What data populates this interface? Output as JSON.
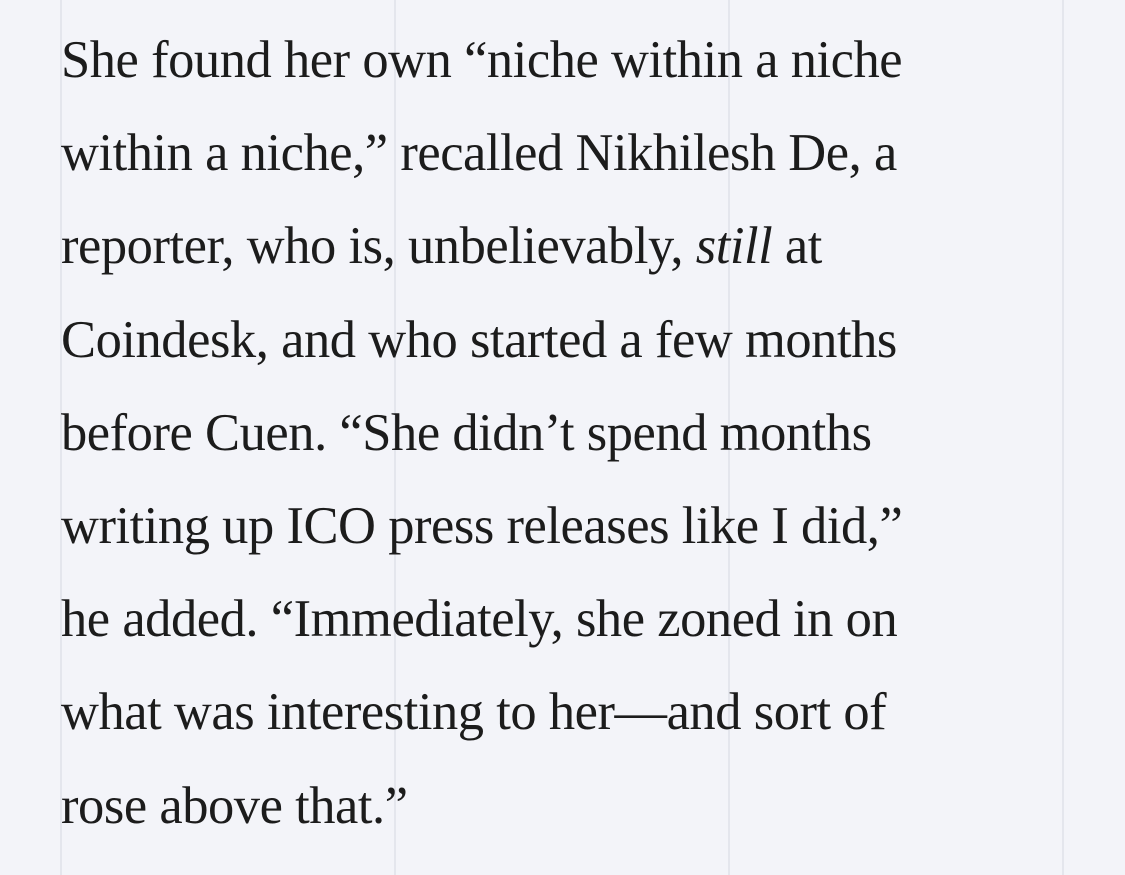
{
  "article": {
    "lines": [
      "She found her own “niche within a niche",
      "within a niche,” recalled Nikhilesh De, a",
      "reporter, who is, unbelievably,",
      "still",
      " at",
      "Coindesk, and who started a few months",
      "before Cuen. “She didn’t spend months",
      "writing up ICO press releases like I did,”",
      "he added. “Immediately, she zoned in on",
      "what was interesting to her—and sort of",
      "rose above that.”"
    ]
  }
}
